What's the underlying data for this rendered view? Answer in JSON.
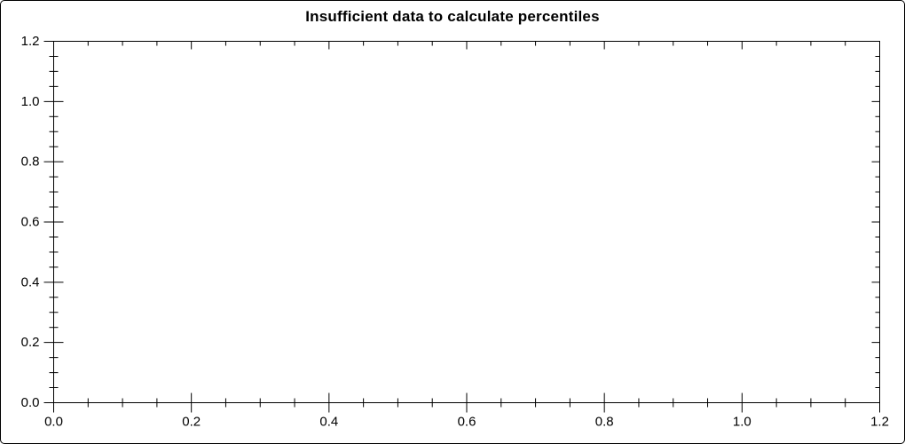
{
  "title": "Insufficient data to calculate percentiles",
  "chart_data": {
    "type": "scatter",
    "title": "Insufficient data to calculate percentiles",
    "subtitle": "",
    "series": [],
    "note": "plot area is empty - no data points, lines or grid are drawn",
    "xlabel": "",
    "ylabel": "",
    "xlim": [
      0.0,
      1.2
    ],
    "ylim": [
      0.0,
      1.2
    ],
    "x_ticks": [
      0.0,
      0.2,
      0.4,
      0.6,
      0.8,
      1.0,
      1.2
    ],
    "x_tick_labels": [
      "0.0",
      "0.2",
      "0.4",
      "0.6",
      "0.8",
      "1.0",
      "1.2"
    ],
    "y_ticks": [
      0.0,
      0.2,
      0.4,
      0.6,
      0.8,
      1.0,
      1.2
    ],
    "y_tick_labels": [
      "0.0",
      "0.2",
      "0.4",
      "0.6",
      "0.8",
      "1.0",
      "1.2"
    ],
    "minor_tick_step": 0.05,
    "grid": false,
    "legend": null,
    "frame": "full box; left/bottom ticks cross the axis, top/right ticks point inward",
    "colors": {
      "background": "#ffffff",
      "axis": "#000000",
      "text": "#000000",
      "title": "#000000"
    }
  }
}
